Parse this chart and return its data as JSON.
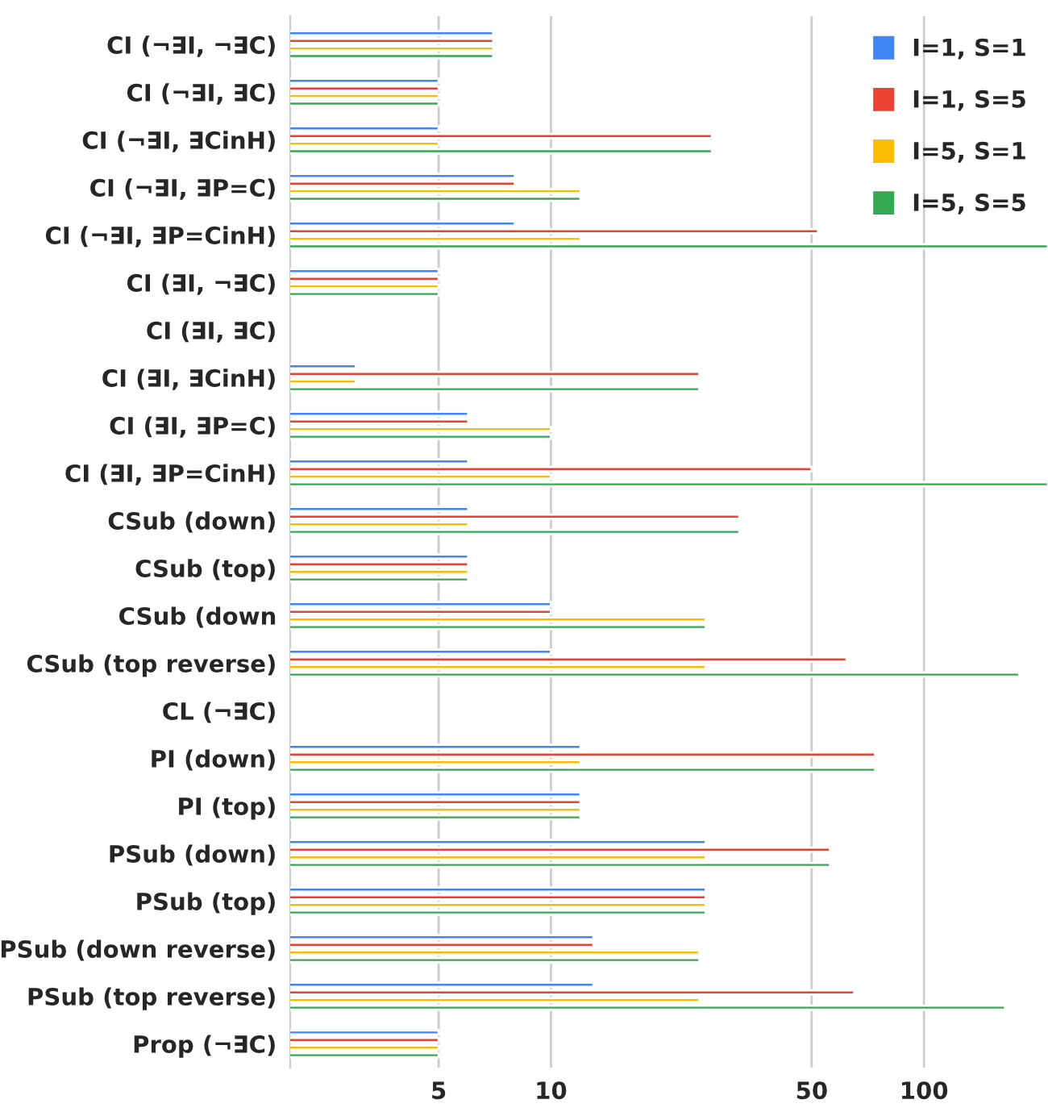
{
  "chart_data": {
    "type": "bar",
    "orientation": "horizontal",
    "log": "x",
    "categories": [
      "CI (¬∃I, ¬∃C)",
      "CI (¬∃I, ∃C)",
      "CI (¬∃I, ∃CinH)",
      "CI (¬∃I, ∃P=C)",
      "CI (¬∃I, ∃P=CinH)",
      "CI (∃I, ¬∃C)",
      "CI (∃I, ∃C)",
      "CI (∃I, ∃CinH)",
      "CI (∃I, ∃P=C)",
      "CI (∃I, ∃P=CinH)",
      "CSub (down)",
      "CSub (top)",
      "CSub (down",
      "CSub (top reverse)",
      "CL (¬∃C)",
      "PI (down)",
      "PI (top)",
      "PSub (down)",
      "PSub (top)",
      "PSub (down reverse)",
      "PSub (top reverse)",
      "Prop (¬∃C)"
    ],
    "series": [
      {
        "name": "I=1, S=1",
        "color": "#4285f4",
        "values": [
          7,
          5,
          5,
          8,
          8,
          5,
          null,
          3,
          6,
          6,
          6,
          6,
          10,
          10,
          null,
          12,
          12,
          26,
          26,
          13,
          13,
          5
        ]
      },
      {
        "name": "I=1, S=5",
        "color": "#ea4335",
        "values": [
          7,
          5,
          27,
          8,
          52,
          5,
          null,
          25,
          6,
          50,
          32,
          6,
          10,
          62,
          null,
          74,
          12,
          56,
          26,
          13,
          65,
          5
        ]
      },
      {
        "name": "I=5, S=1",
        "color": "#fbbc04",
        "values": [
          7,
          5,
          5,
          12,
          12,
          5,
          null,
          3,
          10,
          10,
          6,
          6,
          26,
          26,
          null,
          12,
          12,
          26,
          26,
          25,
          25,
          5
        ]
      },
      {
        "name": "I=5, S=5",
        "color": "#34a853",
        "values": [
          7,
          5,
          27,
          12,
          215,
          5,
          null,
          25,
          10,
          215,
          32,
          6,
          26,
          180,
          null,
          74,
          12,
          56,
          26,
          25,
          165,
          5
        ]
      }
    ],
    "xlim": [
      2,
      215
    ],
    "xticks": [
      5,
      10,
      50,
      100
    ],
    "grid": "x",
    "legend": "top right"
  }
}
